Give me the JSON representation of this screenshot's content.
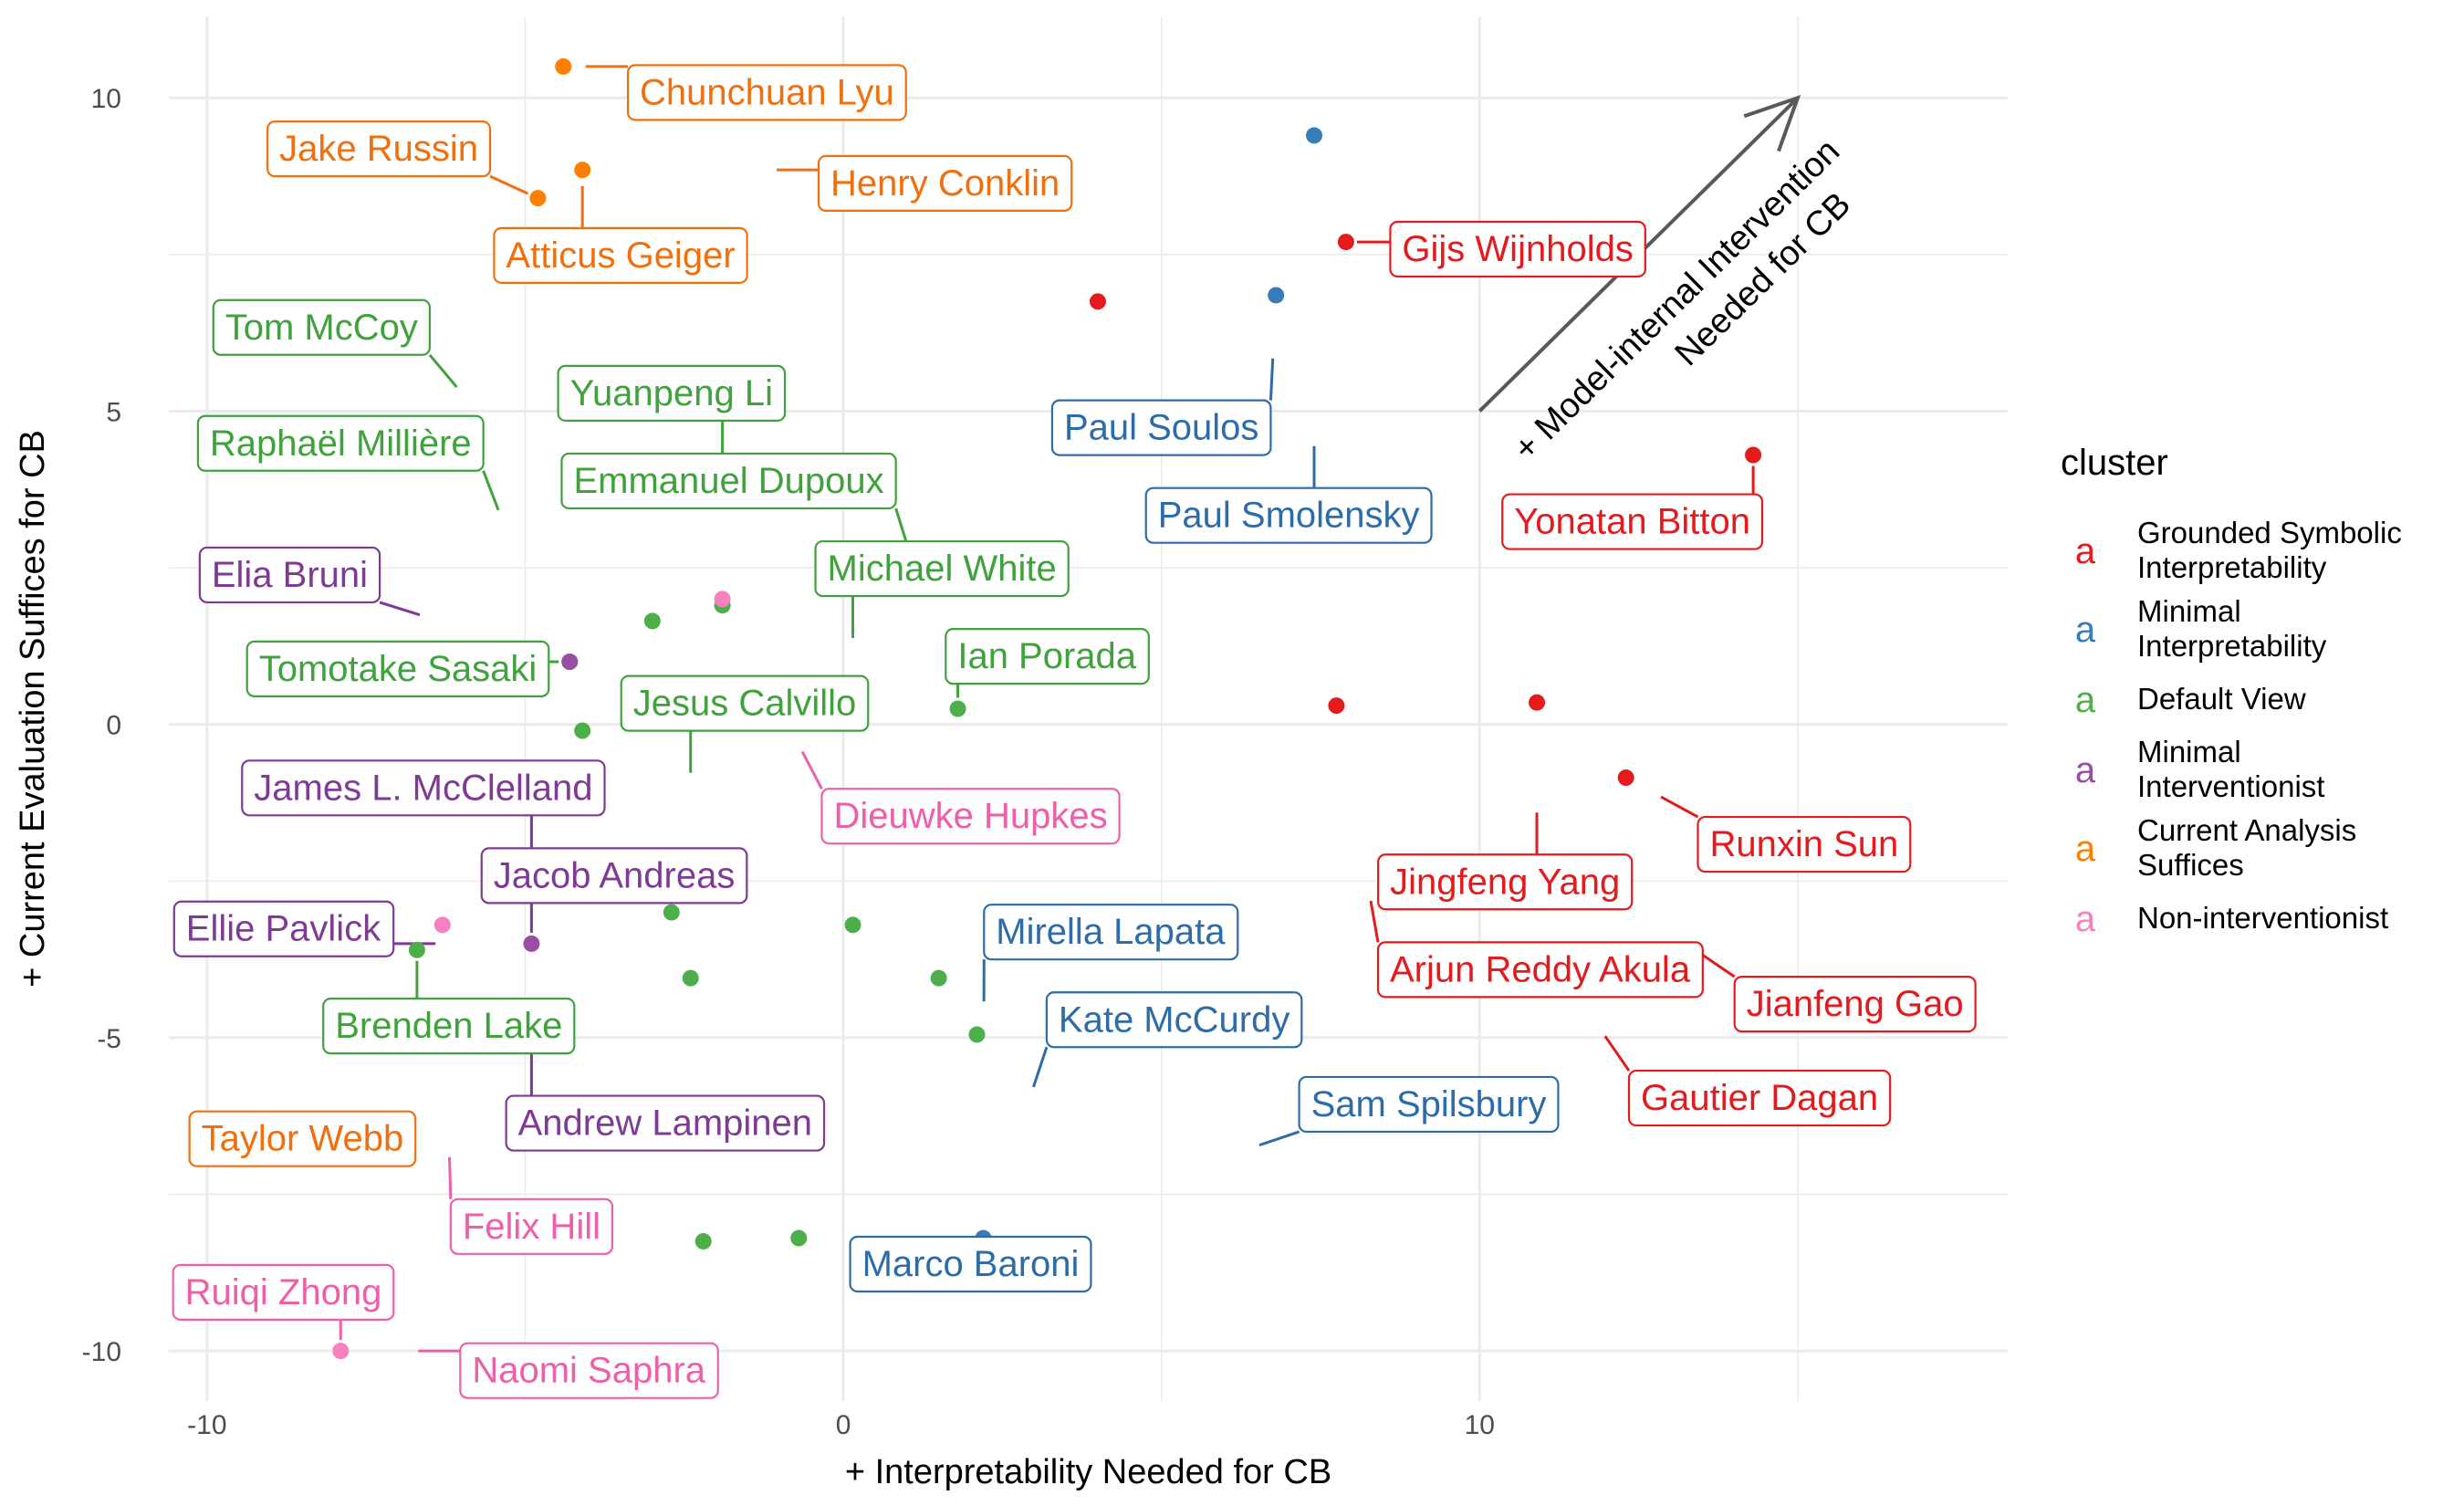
{
  "chart_data": {
    "type": "scatter",
    "xlabel": "+ Interpretability Needed for CB",
    "ylabel": "+ Current Evaluation Suffices for CB",
    "xlim": [
      -10.6,
      18.3
    ],
    "ylim": [
      -10.8,
      11.3
    ],
    "x_ticks": [
      -10,
      0,
      10
    ],
    "y_ticks": [
      -10,
      -5,
      0,
      5,
      10
    ],
    "grid": true,
    "legend": {
      "title": "cluster",
      "position": "right",
      "key_glyph": "a",
      "entries": [
        {
          "id": "grounded",
          "lines": [
            "Grounded Symbolic",
            "Interpretability"
          ],
          "color": "#E41A1C"
        },
        {
          "id": "minimal_interp",
          "lines": [
            "Minimal",
            "Interpretability"
          ],
          "color": "#377EB8"
        },
        {
          "id": "default",
          "lines": [
            "Default View"
          ],
          "color": "#4DAF4A"
        },
        {
          "id": "minimal_interv",
          "lines": [
            "Minimal",
            "Interventionist"
          ],
          "color": "#984EA3"
        },
        {
          "id": "current",
          "lines": [
            "Current Analysis",
            "Suffices"
          ],
          "color": "#FF7F00"
        },
        {
          "id": "nonint",
          "lines": [
            "Non-interventionist"
          ],
          "color": "#F781BF"
        }
      ]
    },
    "annotation": {
      "lines": [
        "+ Model-internal Intervention",
        "Needed for CB"
      ],
      "arrow_from": [
        10,
        5
      ],
      "arrow_to": [
        15,
        10
      ]
    },
    "points": [
      {
        "name": "Chunchuan Lyu",
        "cluster": "current",
        "x": -4.4,
        "y": 10.5,
        "lx": -1.2,
        "ly": 10.1
      },
      {
        "name": "Jake Russin",
        "cluster": "current",
        "x": -4.8,
        "y": 8.4,
        "lx": -7.3,
        "ly": 9.2
      },
      {
        "name": "Henry Conklin",
        "cluster": "current",
        "x": -4.1,
        "y": 8.85,
        "lx": 1.6,
        "ly": 8.65
      },
      {
        "name": "Atticus Geiger",
        "cluster": "current",
        "x": -4.1,
        "y": 8.85,
        "lx": -3.5,
        "ly": 7.5
      },
      {
        "name": "Taylor Webb",
        "cluster": "current",
        "x": -8.8,
        "y": -6.3,
        "lx": -8.5,
        "ly": -6.6
      },
      {
        "name": "Gijs Wijnholds",
        "cluster": "grounded",
        "x": 7.9,
        "y": 7.7,
        "lx": 10.6,
        "ly": 7.6
      },
      {
        "name": "Yonatan Bitton",
        "cluster": "grounded",
        "x": 14.3,
        "y": 4.3,
        "lx": 12.4,
        "ly": 3.25
      },
      {
        "name": "Runxin Sun",
        "cluster": "grounded",
        "x": 12.3,
        "y": -0.85,
        "lx": 15.1,
        "ly": -1.9
      },
      {
        "name": "Jingfeng Yang",
        "cluster": "grounded",
        "x": 10.9,
        "y": 0.35,
        "lx": 10.4,
        "ly": -2.5
      },
      {
        "name": "Arjun Reddy Akula",
        "cluster": "grounded",
        "x": 7.75,
        "y": 0.3,
        "lx": 10.95,
        "ly": -3.9
      },
      {
        "name": "Jianfeng Gao",
        "cluster": "grounded",
        "x": 7.75,
        "y": 0.3,
        "lx": 15.9,
        "ly": -4.45
      },
      {
        "name": "Gautier Dagan",
        "cluster": "grounded",
        "x": 4.0,
        "y": 6.75,
        "lx": 14.4,
        "ly": -5.95
      },
      {
        "name": "Paul Soulos",
        "cluster": "minimal_interp",
        "x": 6.8,
        "y": 6.85,
        "lx": 5.0,
        "ly": 4.75
      },
      {
        "name": "Paul Smolensky",
        "cluster": "minimal_interp",
        "x": 7.4,
        "y": 9.4,
        "lx": 7.0,
        "ly": 3.35
      },
      {
        "name": "Mirella Lapata",
        "cluster": "minimal_interp",
        "x": 2.2,
        "y": -8.2,
        "lx": 4.2,
        "ly": -3.3
      },
      {
        "name": "Kate McCurdy",
        "cluster": "minimal_interp",
        "x": 2.2,
        "y": -8.2,
        "lx": 5.2,
        "ly": -4.7
      },
      {
        "name": "Sam Spilsbury",
        "cluster": "minimal_interp",
        "x": 2.2,
        "y": -8.2,
        "lx": 9.2,
        "ly": -6.05
      },
      {
        "name": "Marco Baroni",
        "cluster": "minimal_interp",
        "x": 2.2,
        "y": -8.2,
        "lx": 2.0,
        "ly": -8.6
      },
      {
        "name": "Tom McCoy",
        "cluster": "default",
        "x": -3.0,
        "y": 1.65,
        "lx": -8.2,
        "ly": 6.35
      },
      {
        "name": "Yuanpeng Li",
        "cluster": "default",
        "x": -1.9,
        "y": 1.9,
        "lx": -2.7,
        "ly": 5.3
      },
      {
        "name": "Raphaël Millière",
        "cluster": "default",
        "x": -4.1,
        "y": -0.1,
        "lx": -7.9,
        "ly": 4.5
      },
      {
        "name": "Emmanuel Dupoux",
        "cluster": "default",
        "x": 1.8,
        "y": 0.25,
        "lx": -1.8,
        "ly": 3.9
      },
      {
        "name": "Michael White",
        "cluster": "default",
        "x": 0.15,
        "y": -3.2,
        "lx": 1.55,
        "ly": 2.5
      },
      {
        "name": "Tomotake Sasaki",
        "cluster": "default",
        "x": -4.3,
        "y": 1.0,
        "lx": -7.0,
        "ly": 0.9
      },
      {
        "name": "Ian Porada",
        "cluster": "default",
        "x": 1.8,
        "y": 0.25,
        "lx": 3.2,
        "ly": 1.1
      },
      {
        "name": "Jesus Calvillo",
        "cluster": "default",
        "x": -2.4,
        "y": -4.05,
        "lx": -1.55,
        "ly": 0.35
      },
      {
        "name": "Brenden Lake",
        "cluster": "default",
        "x": -6.7,
        "y": -3.6,
        "lx": -6.2,
        "ly": -4.8
      },
      {
        "name": "Elia Bruni",
        "cluster": "minimal_interv",
        "x": -4.3,
        "y": 1.0,
        "lx": -8.7,
        "ly": 2.4
      },
      {
        "name": "James L. McClelland",
        "cluster": "minimal_interv",
        "x": -4.9,
        "y": -3.5,
        "lx": -6.6,
        "ly": -1.0
      },
      {
        "name": "Jacob Andreas",
        "cluster": "minimal_interv",
        "x": -4.9,
        "y": -3.5,
        "lx": -3.6,
        "ly": -2.4
      },
      {
        "name": "Ellie Pavlick",
        "cluster": "minimal_interv",
        "x": -4.9,
        "y": -3.5,
        "lx": -8.8,
        "ly": -3.25
      },
      {
        "name": "Andrew Lampinen",
        "cluster": "minimal_interv",
        "x": -4.9,
        "y": -3.5,
        "lx": -2.8,
        "ly": -6.35
      },
      {
        "name": "Dieuwke Hupkes",
        "cluster": "nonint",
        "x": -1.9,
        "y": 2.0,
        "lx": 2.0,
        "ly": -1.45
      },
      {
        "name": "Felix Hill",
        "cluster": "nonint",
        "x": -6.3,
        "y": -3.2,
        "lx": -4.9,
        "ly": -8.0
      },
      {
        "name": "Ruiqi Zhong",
        "cluster": "nonint",
        "x": -7.9,
        "y": -10.0,
        "lx": -8.8,
        "ly": -9.05
      },
      {
        "name": "Naomi Saphra",
        "cluster": "nonint",
        "x": -7.9,
        "y": -10.0,
        "lx": -4.0,
        "ly": -10.3
      }
    ],
    "unlabeled_points": [
      {
        "cluster": "default",
        "x": -2.7,
        "y": -3.0
      },
      {
        "cluster": "default",
        "x": 1.5,
        "y": -4.05
      },
      {
        "cluster": "default",
        "x": 2.1,
        "y": -4.95
      },
      {
        "cluster": "default",
        "x": -2.2,
        "y": -8.25
      },
      {
        "cluster": "default",
        "x": -0.7,
        "y": -8.2
      }
    ]
  }
}
